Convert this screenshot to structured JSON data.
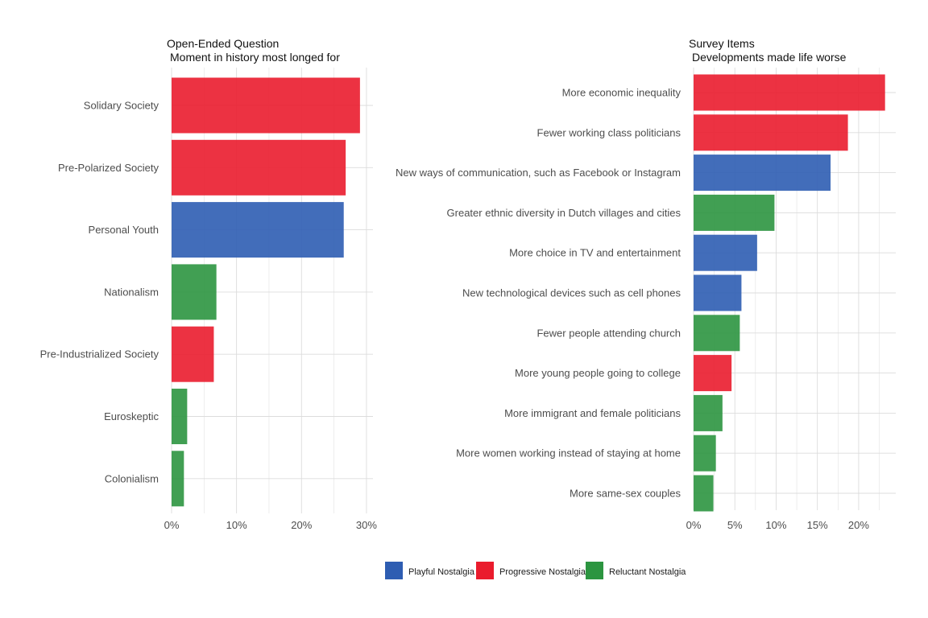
{
  "colors": {
    "Playful Nostalgia": "#2e5db2",
    "Progressive Nostalgia": "#ea1c2d",
    "Reluctant Nostalgia": "#2c9540",
    "grid": "#dcdcdc"
  },
  "legend": {
    "items": [
      "Playful Nostalgia",
      "Progressive Nostalgia",
      "Reluctant Nostalgia"
    ]
  },
  "chart_data": [
    {
      "type": "bar",
      "orientation": "horizontal",
      "title": "Open-Ended Question",
      "subtitle": "Moment in history most longed for",
      "xlabel": "",
      "ylabel": "",
      "xlim": [
        0,
        0.31
      ],
      "x_ticks": [
        0,
        0.1,
        0.2,
        0.3
      ],
      "x_tick_labels": [
        "0%",
        "10%",
        "20%",
        "30%"
      ],
      "grid": true,
      "categories": [
        "Solidary Society",
        "Pre-Polarized Society",
        "Personal Youth",
        "Nationalism",
        "Pre-Industrialized Society",
        "Euroskeptic",
        "Colonialism"
      ],
      "values": [
        0.29,
        0.268,
        0.265,
        0.069,
        0.065,
        0.024,
        0.019
      ],
      "groups": [
        "Progressive Nostalgia",
        "Progressive Nostalgia",
        "Playful Nostalgia",
        "Reluctant Nostalgia",
        "Progressive Nostalgia",
        "Reluctant Nostalgia",
        "Reluctant Nostalgia"
      ]
    },
    {
      "type": "bar",
      "orientation": "horizontal",
      "title": "Survey Items",
      "subtitle": "Developments made life worse",
      "xlabel": "",
      "ylabel": "",
      "xlim": [
        0,
        0.245
      ],
      "x_ticks": [
        0,
        0.05,
        0.1,
        0.15,
        0.2
      ],
      "x_tick_labels": [
        "0%",
        "5%",
        "10%",
        "15%",
        "20%"
      ],
      "grid": true,
      "categories": [
        "More economic inequality",
        "Fewer working class politicians",
        "New ways of communication, such as Facebook or Instagram",
        "Greater ethnic diversity in Dutch villages and cities",
        "More choice in TV and entertainment",
        "New technological devices such as cell phones",
        "Fewer people attending church",
        "More young people going to college",
        "More immigrant and female politicians",
        "More women working instead of staying at home",
        "More same-sex couples"
      ],
      "values": [
        0.232,
        0.187,
        0.166,
        0.098,
        0.077,
        0.058,
        0.056,
        0.046,
        0.035,
        0.027,
        0.024
      ],
      "groups": [
        "Progressive Nostalgia",
        "Progressive Nostalgia",
        "Playful Nostalgia",
        "Reluctant Nostalgia",
        "Playful Nostalgia",
        "Playful Nostalgia",
        "Reluctant Nostalgia",
        "Progressive Nostalgia",
        "Reluctant Nostalgia",
        "Reluctant Nostalgia",
        "Reluctant Nostalgia"
      ]
    }
  ]
}
